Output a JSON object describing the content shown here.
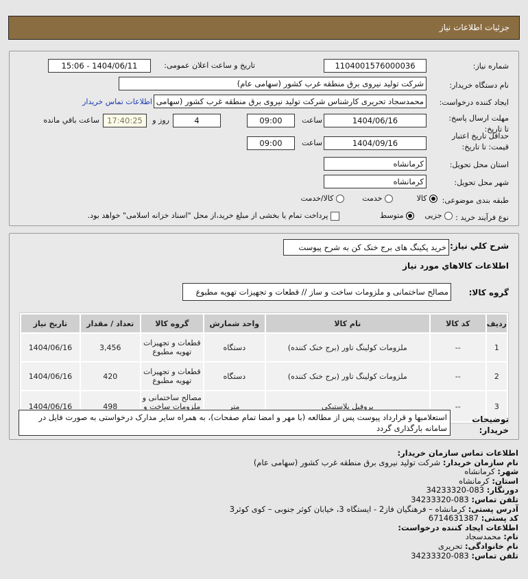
{
  "header": {
    "title": "جزئیات اطلاعات نیاز"
  },
  "form": {
    "need_number_label": "شماره نیاز:",
    "need_number": "1104001576000036",
    "announce_label": "تاریخ و ساعت اعلان عمومی:",
    "announce_value": "1404/06/11 - 15:06",
    "buyer_org_label": "نام دستگاه خریدار:",
    "buyer_org": "شرکت تولید نیروی برق منطقه غرب کشور (سهامی عام)",
    "creator_label": "ایجاد کننده درخواست:",
    "creator": "محمدسجاد تحریری کارشناس شرکت تولید نیروی برق منطقه غرب کشور (سهامی عام)",
    "contact_link": "اطلاعات تماس خریدار",
    "deadline_label": "مهلت ارسال پاسخ: تا تاریخ:",
    "deadline_date": "1404/06/16",
    "time_label": "ساعت",
    "deadline_time": "09:00",
    "days": "4",
    "days_label": "روز و",
    "remaining": "17:40:25",
    "remaining_label": "ساعت باقي مانده",
    "validity_label": "حداقل تاریخ اعتبار قیمت: تا تاریخ:",
    "validity_date": "1404/09/16",
    "validity_time": "09:00",
    "province_label": "استان محل تحویل:",
    "province": "کرمانشاه",
    "city_label": "شهر محل تحویل:",
    "city": "کرمانشاه",
    "category_label": "طبقه بندی موضوعی:",
    "category_options": [
      "کالا",
      "خدمت",
      "کالا/خدمت"
    ],
    "category_selected": "کالا",
    "process_label": "نوع فرآیند خرید :",
    "process_options": [
      "جزیی",
      "متوسط"
    ],
    "process_selected": "متوسط",
    "treasury_text": "پرداخت تمام یا بخشی از مبلغ خرید،از محل \"اسناد خزانه اسلامی\" خواهد بود.",
    "treasury_checked": false
  },
  "summary": {
    "label": "شرح کلي نیاز:",
    "value": "خرید پکینگ های برج خنک کن به شرح پیوست"
  },
  "goods": {
    "title": "اطلاعات کالاهاي مورد نیاز",
    "group_label": "گروه کالا:",
    "group_value": "مصالح ساختمانی و ملزومات ساخت و ساز // قطعات و تجهیزات تهویه مطبوع",
    "columns": [
      "ردیف",
      "کد کالا",
      "نام کالا",
      "واحد شمارش",
      "گروه کالا",
      "تعداد / مقدار",
      "تاریخ نیاز"
    ],
    "rows": [
      [
        "1",
        "--",
        "ملزومات کولینگ تاور (برج خنک کننده)",
        "دستگاه",
        "قطعات و تجهیزات تهویه مطبوع",
        "3,456",
        "1404/06/16"
      ],
      [
        "2",
        "--",
        "ملزومات کولینگ تاور (برج خنک کننده)",
        "دستگاه",
        "قطعات و تجهیزات تهویه مطبوع",
        "420",
        "1404/06/16"
      ],
      [
        "3",
        "--",
        "پروفیل پلاستیکی",
        "متر",
        "مصالح ساختمانی و ملزومات ساخت و ساز",
        "498",
        "1404/06/16"
      ]
    ]
  },
  "notes": {
    "label": "توضیحات خریدار:",
    "value": "استعلامبها و قرارداد پیوست پس از مطالعه (با مهر و امضا تمام صفحات)، به همراه سایر مدارک درخواستی به صورت فایل در سامانه بارگذاری گردد"
  },
  "contact": {
    "title": "اطلاعات تماس سازمان خریدار:",
    "lines": [
      {
        "k": "نام سازمان خریدار:",
        "v": "شرکت تولید نیروی برق منطقه غرب کشور (سهامی عام)"
      },
      {
        "k": "شهر:",
        "v": "کرمانشاه"
      },
      {
        "k": "استان:",
        "v": "کرمانشاه"
      },
      {
        "k": "دورنگار:",
        "v": "083-34233320"
      },
      {
        "k": "تلفن تماس:",
        "v": "083-34233320"
      },
      {
        "k": "آدرس پستی:",
        "v": "کرمانشاه – فرهنگیان فاز2 - ایستگاه 3، خیابان کوثر جنوبی – کوی کوثر3"
      },
      {
        "k": "کد پستی:",
        "v": "6714631387"
      }
    ],
    "creator_title": "اطلاعات ایجاد کننده درخواست:",
    "creator_lines": [
      {
        "k": "نام:",
        "v": "محمدسجاد"
      },
      {
        "k": "نام خانوادگی:",
        "v": "تحریری"
      },
      {
        "k": "تلفن تماس:",
        "v": "083-34233320"
      }
    ]
  }
}
